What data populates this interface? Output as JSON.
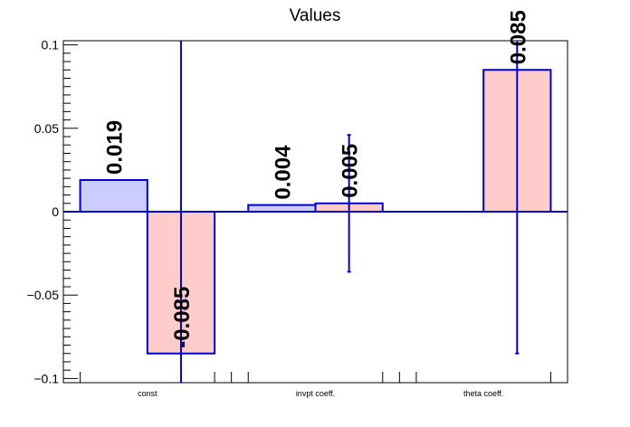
{
  "chart_data": {
    "type": "bar",
    "title": "Values",
    "xlabel": "",
    "ylabel": "",
    "categories": [
      "const",
      "invpt coeff.",
      "theta coeff."
    ],
    "ylim": [
      -0.1,
      0.1
    ],
    "yticks": [
      -0.1,
      -0.05,
      0,
      0.05,
      0.1
    ],
    "ytick_labels": [
      "−0.1",
      "−0.05",
      "0",
      "0.05",
      "0.1"
    ],
    "grid": false,
    "legend": "none",
    "series": [
      {
        "color": "#ccccff",
        "values": [
          0.019,
          0.004,
          null
        ],
        "labels": [
          "0.019",
          "0.004",
          ""
        ],
        "errors": [
          null,
          null,
          null
        ]
      },
      {
        "color": "#ffcccc",
        "values": [
          -0.085,
          0.005,
          0.085
        ],
        "labels": [
          "-0.085",
          "0.005",
          "0.085"
        ],
        "errors": [
          0.21,
          0.041,
          0.17
        ]
      }
    ],
    "edge_color": "#0000cc"
  }
}
